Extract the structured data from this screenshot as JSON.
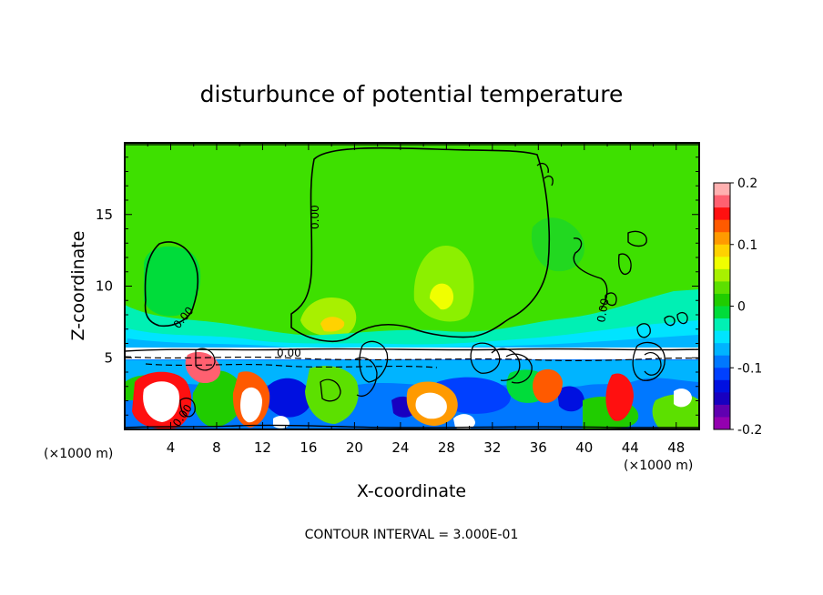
{
  "chart_data": {
    "type": "heatmap",
    "title": "disturbunce of potential temperature",
    "xlabel": "X-coordinate",
    "ylabel": "Z-coordinate",
    "x_unit_left": "(×1000 m)",
    "x_unit_right": "(×1000 m)",
    "xlim": [
      0,
      50
    ],
    "ylim": [
      0,
      20
    ],
    "xticks": [
      4,
      8,
      12,
      16,
      20,
      24,
      28,
      32,
      36,
      40,
      44,
      48
    ],
    "yticks": [
      5,
      10,
      15
    ],
    "colorbar": {
      "range": [
        -0.2,
        0.2
      ],
      "tick_values": [
        0.2,
        0.1,
        0,
        -0.1,
        -0.2
      ],
      "tick_labels": [
        "0.2",
        "0.1",
        "0",
        "-0.1",
        "-0.2"
      ],
      "colors": [
        "#ffb0b0",
        "#ff6070",
        "#ff1010",
        "#ff5a00",
        "#ff9a00",
        "#ffd200",
        "#f0ff00",
        "#a8f000",
        "#5ce000",
        "#20cc00",
        "#00dc3a",
        "#00f0b4",
        "#00e4ff",
        "#00b4ff",
        "#0078ff",
        "#0040ff",
        "#0010e0",
        "#1800c0",
        "#6000b0",
        "#9400b0"
      ]
    },
    "contour_labels": [
      "0.00",
      "0.00",
      "0.00",
      "0.00",
      "0.00"
    ],
    "footer": "CONTOUR INTERVAL = 3.000E-01"
  }
}
